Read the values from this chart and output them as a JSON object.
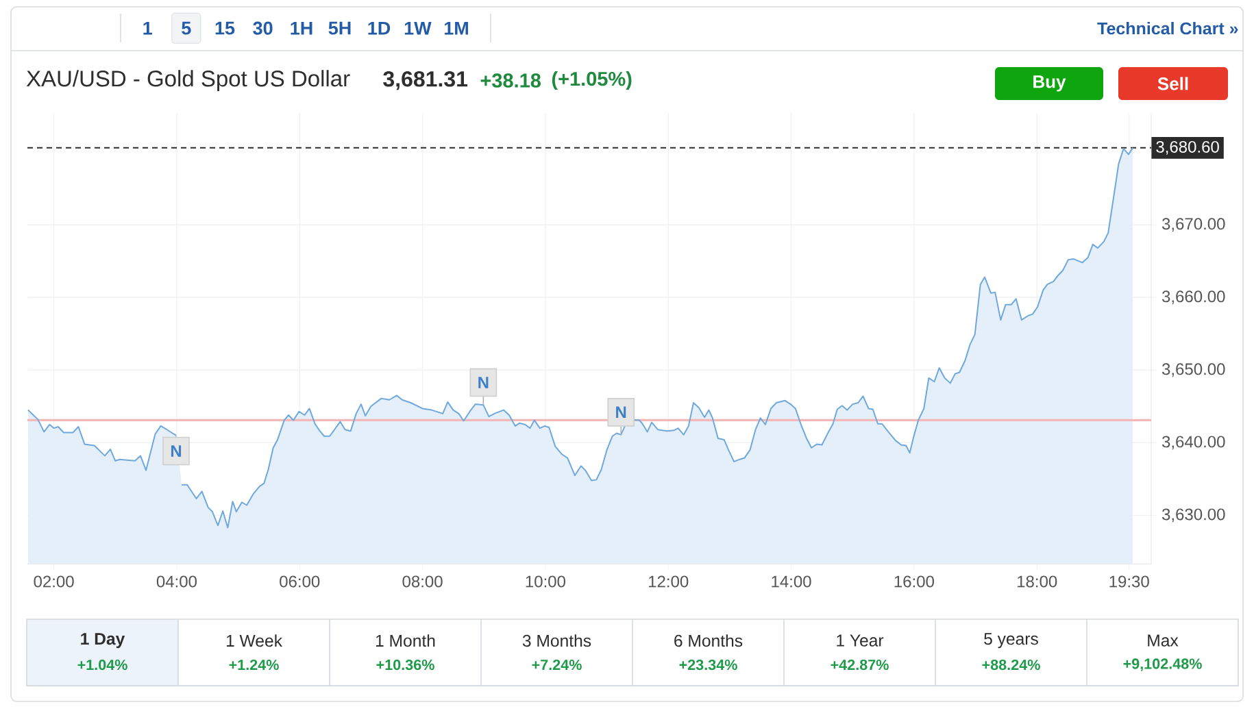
{
  "chart_data": {
    "type": "area",
    "title": "XAU/USD - Gold Spot US Dollar",
    "color": "#6fa8dc",
    "x": [
      1.58,
      1.74,
      1.84,
      1.93,
      2.0,
      2.07,
      2.16,
      2.31,
      2.4,
      2.5,
      2.66,
      2.83,
      2.92,
      3.0,
      3.07,
      3.32,
      3.41,
      3.5,
      3.65,
      3.74,
      3.84,
      3.99,
      4.03,
      4.08,
      4.17,
      4.32,
      4.41,
      4.51,
      4.58,
      4.67,
      4.75,
      4.83,
      4.91,
      4.97,
      5.06,
      5.14,
      5.25,
      5.35,
      5.42,
      5.49,
      5.57,
      5.64,
      5.75,
      5.82,
      5.9,
      5.99,
      6.08,
      6.16,
      6.25,
      6.33,
      6.4,
      6.49,
      6.66,
      6.74,
      6.83,
      6.92,
      7.0,
      7.07,
      7.16,
      7.33,
      7.46,
      7.58,
      7.67,
      7.81,
      8.0,
      8.15,
      8.33,
      8.41,
      8.5,
      8.59,
      8.67,
      8.77,
      8.86,
      8.99,
      9.08,
      9.17,
      9.32,
      9.41,
      9.51,
      9.58,
      9.67,
      9.75,
      9.82,
      9.91,
      9.99,
      10.06,
      10.16,
      10.27,
      10.36,
      10.48,
      10.58,
      10.65,
      10.75,
      10.83,
      10.91,
      11.0,
      11.09,
      11.16,
      11.23,
      11.31,
      11.4,
      11.53,
      11.58,
      11.66,
      11.73,
      11.83,
      11.98,
      12.09,
      12.16,
      12.25,
      12.33,
      12.41,
      12.5,
      12.59,
      12.66,
      12.72,
      12.81,
      12.91,
      12.98,
      13.07,
      13.16,
      13.24,
      13.33,
      13.42,
      13.5,
      13.58,
      13.67,
      13.76,
      13.9,
      13.99,
      14.07,
      14.16,
      14.25,
      14.33,
      14.42,
      14.5,
      14.59,
      14.68,
      14.75,
      14.83,
      14.91,
      15.0,
      15.09,
      15.17,
      15.26,
      15.33,
      15.41,
      15.48,
      15.59,
      15.7,
      15.79,
      15.87,
      15.93,
      15.99,
      16.07,
      16.16,
      16.24,
      16.33,
      16.41,
      16.5,
      16.59,
      16.67,
      16.74,
      16.83,
      16.91,
      16.99,
      17.08,
      17.15,
      17.25,
      17.32,
      17.41,
      17.49,
      17.58,
      17.66,
      17.75,
      17.86,
      17.93,
      18.01,
      18.1,
      18.17,
      18.27,
      18.34,
      18.42,
      18.51,
      18.6,
      18.74,
      18.83,
      18.91,
      18.99,
      19.09,
      19.16,
      19.25,
      19.33,
      19.41,
      19.49,
      19.56
    ],
    "values": [
      3644.5,
      3643.2,
      3641.5,
      3642.5,
      3642.0,
      3642.2,
      3641.4,
      3641.4,
      3642.2,
      3639.8,
      3639.6,
      3638.2,
      3639.1,
      3637.5,
      3637.7,
      3637.5,
      3638.2,
      3636.2,
      3641.2,
      3642.3,
      3641.8,
      3641.0,
      null,
      3634.2,
      3634.2,
      3632.3,
      3633.3,
      3631.1,
      3630.5,
      3628.6,
      3630.6,
      3628.3,
      3631.9,
      3630.5,
      3631.8,
      3631.4,
      3633.0,
      3634.0,
      3634.4,
      3636.3,
      3639.3,
      3640.4,
      3643.1,
      3643.8,
      3643.1,
      3644.3,
      3643.8,
      3644.7,
      3642.6,
      3641.6,
      3640.9,
      3640.9,
      3642.9,
      3641.8,
      3641.6,
      3644.0,
      3645.3,
      3643.7,
      3645.0,
      3646.1,
      3645.9,
      3646.5,
      3645.9,
      3645.5,
      3644.7,
      3644.5,
      3644.0,
      3645.6,
      3644.5,
      3644.0,
      3643.0,
      3644.3,
      3645.3,
      3645.2,
      3643.6,
      3644.0,
      3644.5,
      3643.8,
      3642.3,
      3642.7,
      3642.5,
      3642.0,
      3643.1,
      3642.0,
      3642.3,
      3642.1,
      3639.5,
      3638.4,
      3637.9,
      3635.5,
      3636.8,
      3636.2,
      3634.8,
      3634.9,
      3636.3,
      3639.0,
      3640.9,
      3641.3,
      3641.1,
      3642.6,
      3643.2,
      3643.1,
      3642.6,
      3641.5,
      3642.8,
      3641.8,
      3641.6,
      3641.7,
      3642.0,
      3641.1,
      3642.3,
      3645.5,
      3644.8,
      3643.5,
      3644.5,
      3643.4,
      3640.6,
      3640.4,
      3639.0,
      3637.4,
      3637.7,
      3637.9,
      3639.0,
      3641.8,
      3643.4,
      3642.5,
      3644.7,
      3645.5,
      3645.8,
      3645.3,
      3644.7,
      3642.5,
      3640.6,
      3639.3,
      3639.8,
      3639.7,
      3641.2,
      3642.6,
      3644.6,
      3645.1,
      3644.5,
      3645.3,
      3645.5,
      3646.4,
      3644.7,
      3644.6,
      3642.6,
      3642.6,
      3641.4,
      3640.3,
      3639.7,
      3639.6,
      3638.6,
      3640.7,
      3643.1,
      3644.7,
      3648.9,
      3648.4,
      3650.3,
      3648.9,
      3648.2,
      3649.5,
      3649.7,
      3651.3,
      3653.5,
      3654.9,
      3661.8,
      3662.8,
      3660.6,
      3660.7,
      3656.9,
      3659.0,
      3659.0,
      3659.8,
      3656.9,
      3657.5,
      3657.7,
      3658.7,
      3661.0,
      3661.8,
      3662.2,
      3663.0,
      3663.7,
      3665.2,
      3665.3,
      3664.8,
      3665.5,
      3667.3,
      3666.8,
      3667.7,
      3668.9,
      3673.9,
      3678.4,
      3680.5,
      3679.7,
      3680.6
    ],
    "xlim": [
      1.57,
      19.86
    ],
    "ylim": [
      3623.3,
      3685.3
    ],
    "xticks": [
      {
        "value": 2,
        "label": "02:00"
      },
      {
        "value": 4,
        "label": "04:00"
      },
      {
        "value": 6,
        "label": "06:00"
      },
      {
        "value": 8,
        "label": "08:00"
      },
      {
        "value": 10,
        "label": "10:00"
      },
      {
        "value": 12,
        "label": "12:00"
      },
      {
        "value": 14,
        "label": "14:00"
      },
      {
        "value": 16,
        "label": "16:00"
      },
      {
        "value": 18,
        "label": "18:00"
      },
      {
        "value": 19.5,
        "label": "19:30"
      }
    ],
    "yticks": [
      {
        "value": 3630,
        "label": "3,630.00"
      },
      {
        "value": 3640,
        "label": "3,640.00"
      },
      {
        "value": 3650,
        "label": "3,650.00"
      },
      {
        "value": 3660,
        "label": "3,660.00"
      },
      {
        "value": 3670,
        "label": "3,670.00"
      }
    ],
    "grid": true,
    "ref_lines": [
      {
        "axis": "y",
        "value": 3680.6,
        "label": "3,680.60",
        "color": "#2b2b2b",
        "line_style": "dashed"
      },
      {
        "axis": "y",
        "value": 3643.1,
        "color": "#f4b8b8"
      }
    ],
    "annotations": [
      "1",
      "5",
      "15",
      "30",
      "1H",
      "5H",
      "1D",
      "1W",
      "1M",
      "Technical Chart »",
      "3,681.31",
      "+38.18",
      "(+1.05%)",
      "Buy",
      "Sell",
      "1 Day",
      "+1.04%",
      "1 Week",
      "+1.24%",
      "1 Month",
      "+10.36%",
      "3 Months",
      "+7.24%",
      "6 Months",
      "+23.34%",
      "1 Year",
      "+42.87%",
      "5 years",
      "+88.24%",
      "Max",
      "+9,102.48%",
      {
        "text": "N",
        "x": 3.99,
        "y": 3641.0
      },
      {
        "text": "N",
        "x": 8.99,
        "y": 3645.2
      },
      {
        "text": "N",
        "x": 11.23,
        "y": 3641.1
      }
    ]
  }
}
